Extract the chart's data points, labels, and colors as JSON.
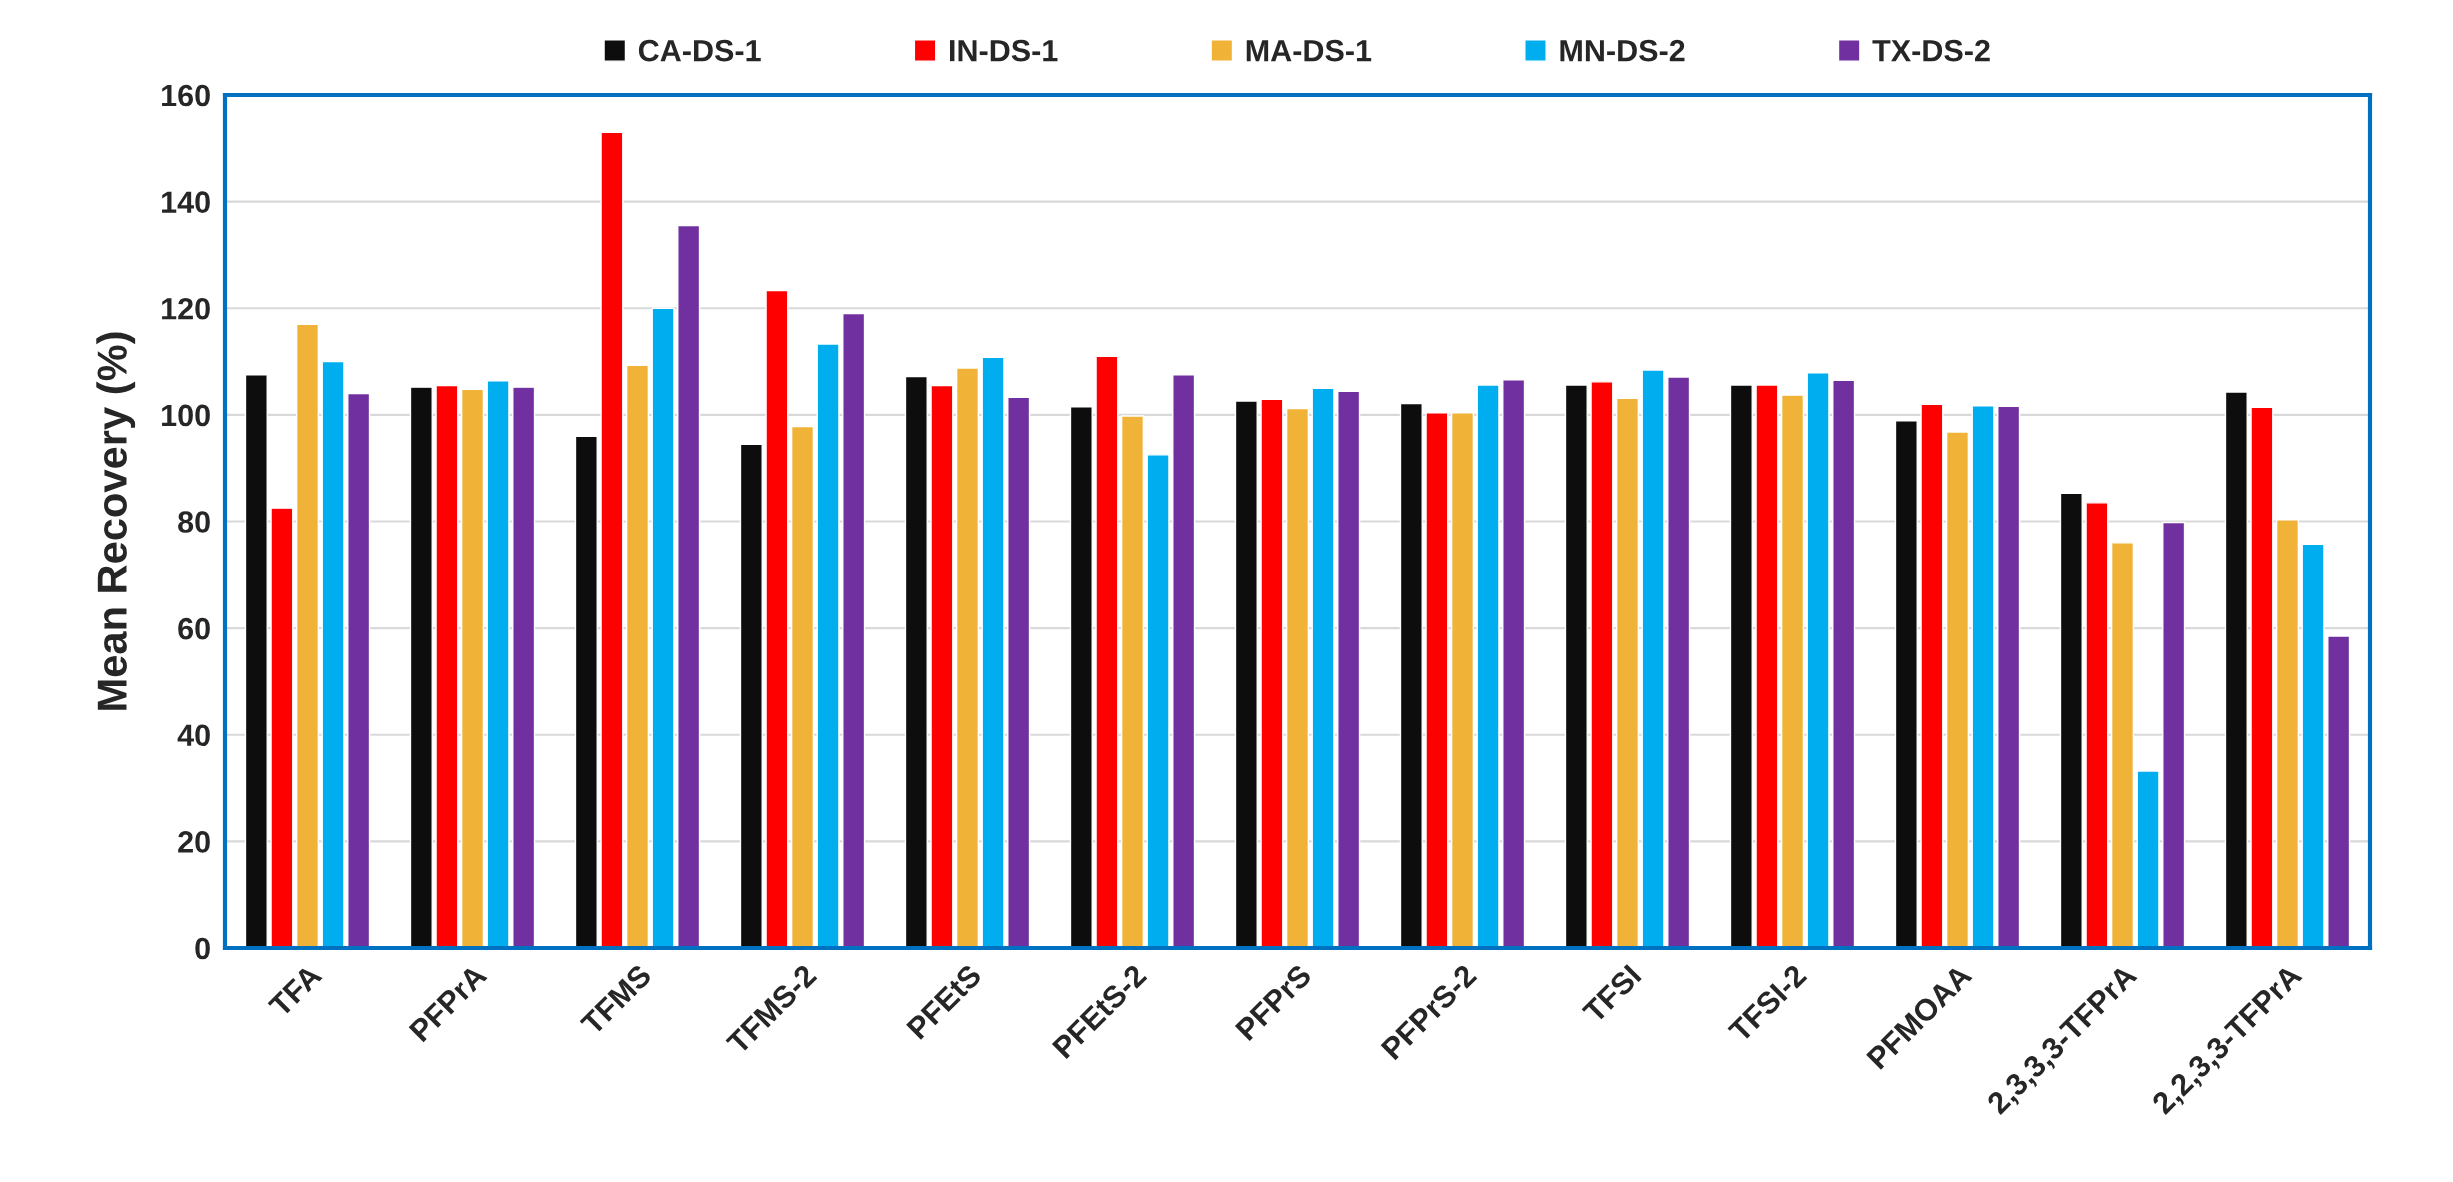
{
  "chart_data": {
    "type": "bar",
    "ylabel": "Mean Recovery (%)",
    "categories": [
      "TFA",
      "PFPrA",
      "TFMS",
      "TFMS-2",
      "PFEtS",
      "PFEtS-2",
      "PFPrS",
      "PFPrS-2",
      "TFSI",
      "TFSI-2",
      "PFMOAA",
      "2,3,3,3-TFPrA",
      "2,2,3,3-TFPrA"
    ],
    "series": [
      {
        "name": "CA-DS-1",
        "color": "#0d0d0d",
        "values": [
          107.5,
          105.2,
          96,
          94.5,
          107.2,
          101.5,
          102.6,
          102.1,
          105.6,
          105.6,
          98.9,
          85.3,
          104.3
        ]
      },
      {
        "name": "IN-DS-1",
        "color": "#ff0000",
        "values": [
          82.5,
          105.5,
          153,
          123.3,
          105.5,
          111,
          102.9,
          100.4,
          106.2,
          105.6,
          102,
          83.5,
          101.4
        ]
      },
      {
        "name": "MA-DS-1",
        "color": "#f0b237",
        "values": [
          117,
          104.8,
          109.3,
          97.8,
          108.8,
          99.8,
          101.2,
          100.4,
          103.1,
          103.7,
          96.8,
          76,
          80.3
        ]
      },
      {
        "name": "MN-DS-2",
        "color": "#00aeef",
        "values": [
          110,
          106.4,
          120,
          113.3,
          110.8,
          92.5,
          105,
          105.6,
          108.4,
          107.9,
          101.7,
          33.2,
          75.7
        ]
      },
      {
        "name": "TX-DS-2",
        "color": "#7030a0",
        "values": [
          104,
          105.2,
          135.5,
          119,
          103.3,
          107.5,
          104.4,
          106.6,
          107.1,
          106.5,
          101.6,
          79.8,
          58.5
        ]
      }
    ],
    "ylim": [
      0,
      160
    ],
    "yticks": [
      0,
      20,
      40,
      60,
      80,
      100,
      120,
      140,
      160
    ],
    "grid": "y",
    "legend": "top"
  }
}
